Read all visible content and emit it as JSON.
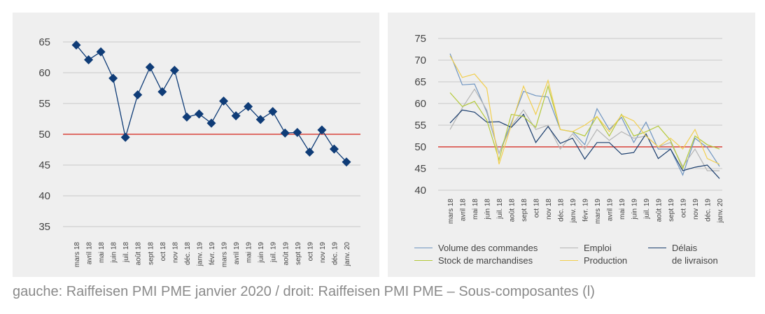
{
  "caption": "gauche: Raiffeisen PMI PME janvier 2020 / droit: Raiffeisen PMI PME – Sous-composantes (l)",
  "chart_data": [
    {
      "type": "line",
      "title": "",
      "x": [
        "mars 18",
        "avril 18",
        "mai 18",
        "juin 18",
        "juil. 18",
        "août 18",
        "sept 18",
        "oct 18",
        "nov 18",
        "déc. 18",
        "janv. 19",
        "févr. 19",
        "mars 19",
        "avril 19",
        "mai 19",
        "juin 19",
        "juil. 19",
        "août 19",
        "sept 19",
        "oct 19",
        "nov 19",
        "déc. 19",
        "janv. 20"
      ],
      "x_tick_labels": [
        "mars 18",
        "avril 18",
        "mai 18",
        "juin 18",
        "juil. 18",
        "août 18",
        "sept 18",
        "oct 18",
        "nov 18",
        "déc. 18",
        "janv. 19",
        "févr. 19",
        "mars 19",
        "avril 19",
        "mai 19",
        "juin 19",
        "juil. 19",
        "août 19",
        "sept 19",
        "oct 19",
        "nov 19",
        "déc. 19",
        "janv. 20"
      ],
      "y_ticks": [
        35,
        40,
        45,
        50,
        55,
        60,
        65
      ],
      "ylim": [
        35,
        65
      ],
      "reference_line": 50,
      "grid": true,
      "series": [
        {
          "values": [
            64.5,
            62.1,
            63.4,
            59.1,
            49.5,
            56.4,
            60.9,
            56.9,
            60.4,
            52.8,
            53.3,
            51.8,
            55.4,
            53.0,
            54.5,
            52.4,
            53.7,
            50.2,
            50.3,
            47.1,
            50.7,
            47.6,
            45.5
          ],
          "color": "#0f3c77",
          "marker": "diamond"
        }
      ],
      "reference_color": "#d9423a"
    },
    {
      "type": "line",
      "title": "",
      "x": [
        "mars 18",
        "avril 18",
        "mai 18",
        "juin 18",
        "juil. 18",
        "août 18",
        "sept 18",
        "oct 18",
        "nov 18",
        "déc. 18",
        "janv. 19",
        "févr. 19",
        "mars 19",
        "avril 19",
        "mai 19",
        "juin 19",
        "juil. 19",
        "août 19",
        "sept 19",
        "oct 19",
        "nov 19",
        "déc. 19",
        "janv. 20"
      ],
      "x_tick_labels": [
        "mars 18",
        "avril 18",
        "mai 18",
        "juin 18",
        "juil. 18",
        "août 18",
        "sept 18",
        "oct 18",
        "nov 18",
        "déc. 18",
        "janv. 19",
        "févr. 19",
        "mars 19",
        "avril 19",
        "mai 19",
        "juin 19",
        "juil. 19",
        "août 19",
        "sept 19",
        "oct 19",
        "nov 19",
        "déc. 19",
        "janv. 20"
      ],
      "y_ticks": [
        40,
        45,
        50,
        55,
        60,
        65,
        70,
        75
      ],
      "ylim": [
        40,
        75
      ],
      "reference_line": 50,
      "grid": true,
      "series": [
        {
          "name": "Volume des commandes",
          "color": "#6f95c1",
          "values": [
            71.5,
            64.3,
            64.5,
            58.0,
            48.5,
            55.5,
            62.8,
            61.8,
            61.5,
            54.0,
            53.5,
            50.5,
            58.8,
            54.0,
            56.8,
            51.0,
            55.7,
            49.5,
            49.5,
            43.5,
            52.0,
            49.8,
            45.5
          ]
        },
        {
          "name": "Emploi",
          "color": "#b5b5b5",
          "values": [
            54.0,
            59.0,
            63.3,
            58.5,
            48.5,
            54.8,
            58.5,
            54.0,
            55.0,
            49.5,
            53.0,
            49.5,
            54.0,
            51.5,
            53.5,
            52.0,
            52.5,
            50.0,
            51.0,
            45.5,
            49.5,
            44.5,
            44.5
          ]
        },
        {
          "name": "Délais de livraison",
          "color": "#1a3d6d",
          "values": [
            55.5,
            58.5,
            58.0,
            55.7,
            55.8,
            54.5,
            57.5,
            51.0,
            54.7,
            50.8,
            52.0,
            47.2,
            51.0,
            51.0,
            48.3,
            48.7,
            53.0,
            47.3,
            49.5,
            44.5,
            45.3,
            45.8,
            42.7
          ]
        },
        {
          "name": "Stock de marchandises",
          "color": "#b4c93a",
          "values": [
            62.5,
            59.3,
            60.5,
            56.2,
            47.0,
            57.5,
            57.0,
            54.5,
            64.0,
            54.0,
            53.5,
            52.5,
            57.0,
            52.5,
            57.5,
            52.5,
            53.5,
            54.8,
            51.5,
            45.0,
            52.5,
            50.5,
            49.5
          ]
        },
        {
          "name": "Production",
          "color": "#f2cf4f",
          "values": [
            71.0,
            66.0,
            66.8,
            63.5,
            46.0,
            55.0,
            64.0,
            57.5,
            65.3,
            54.0,
            53.5,
            55.0,
            57.0,
            53.5,
            57.3,
            56.0,
            52.5,
            50.0,
            52.0,
            49.5,
            54.0,
            47.3,
            46.0
          ]
        }
      ],
      "legend": "bottom",
      "legend_labels": [
        {
          "text": "Volume des commandes",
          "color": "#6f95c1"
        },
        {
          "text": "Emploi",
          "color": "#b5b5b5"
        },
        {
          "text": "Délais",
          "line2": "de livraison",
          "color": "#1a3d6d"
        },
        {
          "text": "Stock de marchandises",
          "color": "#b4c93a"
        },
        {
          "text": "Production",
          "color": "#f2cf4f"
        }
      ],
      "reference_color": "#d9423a"
    }
  ]
}
